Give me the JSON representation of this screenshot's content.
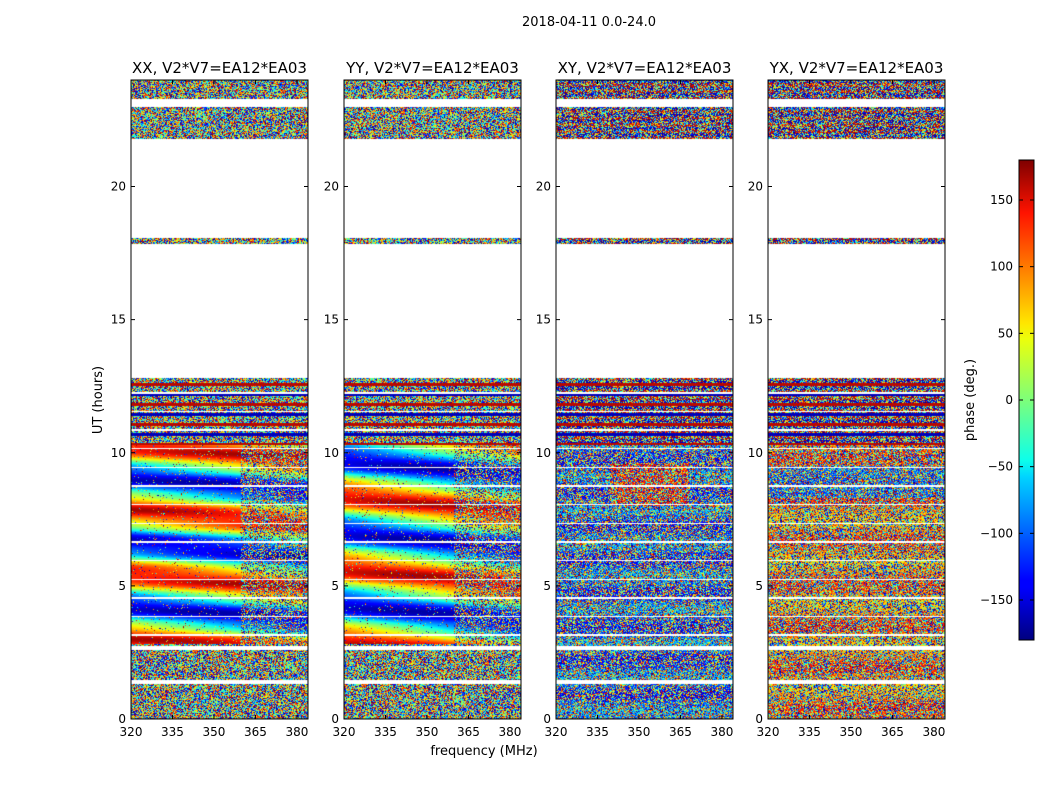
{
  "chart_data": {
    "type": "heatmap",
    "suptitle": "2018-04-11 0.0-24.0",
    "xlabel": "frequency (MHz)",
    "ylabel": "UT (hours)",
    "xlim": [
      320,
      384
    ],
    "ylim": [
      0,
      24
    ],
    "xticks": [
      320,
      335,
      350,
      365,
      380
    ],
    "yticks": [
      0,
      5,
      10,
      15,
      20
    ],
    "panels": [
      {
        "name": "xx",
        "title": "XX, V2*V7=EA12*EA03"
      },
      {
        "name": "yy",
        "title": "YY, V2*V7=EA12*EA03"
      },
      {
        "name": "xy",
        "title": "XY, V2*V7=EA12*EA03"
      },
      {
        "name": "yx",
        "title": "YX, V2*V7=EA12*EA03"
      }
    ],
    "colorbar": {
      "label": "phase (deg.)",
      "range": [
        -180,
        180
      ],
      "ticks": [
        -150,
        -100,
        -50,
        0,
        50,
        100,
        150
      ],
      "tick_labels": [
        "−150",
        "−100",
        "−50",
        "0",
        "50",
        "100",
        "150"
      ]
    },
    "data_bands_hours": [
      [
        0,
        12.8
      ],
      [
        17.85,
        18.05
      ],
      [
        21.8,
        23.0
      ],
      [
        23.3,
        24.0
      ]
    ]
  }
}
